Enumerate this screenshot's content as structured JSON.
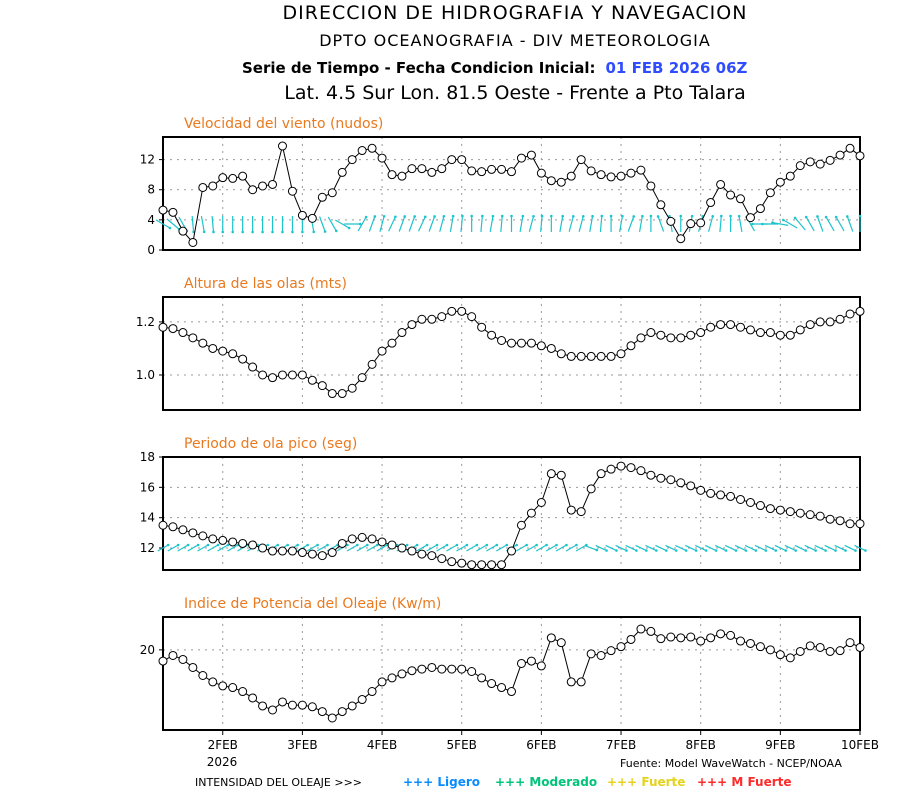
{
  "header": {
    "line1": "DIRECCION DE HIDROGRAFIA Y NAVEGACION",
    "line2": "DPTO OCEANOGRAFIA - DIV METEOROLOGIA",
    "line3_prefix": "Serie de Tiempo - Fecha Condicion Inicial:",
    "line3_date": "01 FEB 2026 06Z",
    "line4": "Lat. 4.5 Sur  Lon. 81.5 Oeste - Frente a Pto Talara"
  },
  "colors": {
    "date": "#2f4cff",
    "title": "#e87a20",
    "arrow": "#1cc4cc",
    "ligero": "#0a8cff",
    "moderado": "#00c47a",
    "fuerte": "#e6d21c",
    "mfuerte": "#ff2a2a"
  },
  "chart_data": [
    {
      "type": "line",
      "title": "Velocidad del viento (nudos)",
      "ylim": [
        0,
        15
      ],
      "yticks": [
        "0",
        "4",
        "8",
        "12"
      ],
      "ytick_values": [
        0,
        4,
        8,
        12
      ],
      "x_start": "01 FEB 2026 06Z",
      "x_step_hours": 3,
      "values": [
        5.3,
        5.0,
        2.5,
        1.0,
        8.3,
        8.5,
        9.6,
        9.5,
        9.8,
        8.0,
        8.5,
        8.7,
        13.8,
        7.8,
        4.6,
        4.2,
        7.0,
        7.6,
        10.3,
        12.0,
        13.2,
        13.5,
        12.2,
        10.0,
        9.8,
        10.8,
        10.8,
        10.3,
        10.8,
        12.0,
        12.0,
        10.5,
        10.4,
        10.7,
        10.7,
        10.4,
        12.2,
        12.6,
        10.2,
        9.2,
        9.0,
        9.8,
        12.0,
        10.5,
        10.0,
        9.7,
        9.8,
        10.2,
        10.6,
        8.5,
        6.0,
        3.8,
        1.5,
        3.5,
        3.6,
        6.3,
        8.7,
        7.3,
        6.8,
        4.3,
        5.5,
        7.6,
        9.0,
        9.8,
        11.2,
        11.7,
        11.4,
        11.9,
        12.6,
        13.5,
        12.5
      ],
      "arrow_dir_deg": [
        120,
        130,
        150,
        175,
        170,
        175,
        180,
        180,
        180,
        180,
        180,
        180,
        180,
        180,
        180,
        170,
        160,
        150,
        120,
        90,
        30,
        20,
        15,
        25,
        20,
        20,
        25,
        20,
        15,
        10,
        5,
        0,
        5,
        10,
        5,
        0,
        10,
        15,
        5,
        0,
        10,
        15,
        15,
        10,
        5,
        0,
        10,
        20,
        10,
        0,
        340,
        350,
        0,
        10,
        15,
        15,
        5,
        0,
        350,
        330,
        270,
        270,
        280,
        300,
        320,
        330,
        340,
        330,
        330,
        340,
        0
      ]
    },
    {
      "type": "line",
      "title": "Altura de las olas (mts)",
      "ylim": [
        0.868,
        1.294
      ],
      "yticks": [
        "1.0",
        "1.2"
      ],
      "ytick_values": [
        1.0,
        1.2
      ],
      "values": [
        1.18,
        1.175,
        1.16,
        1.14,
        1.12,
        1.1,
        1.09,
        1.08,
        1.06,
        1.03,
        1.0,
        0.99,
        1.0,
        1.0,
        1.0,
        0.98,
        0.96,
        0.93,
        0.93,
        0.95,
        0.99,
        1.04,
        1.09,
        1.12,
        1.16,
        1.19,
        1.21,
        1.21,
        1.22,
        1.24,
        1.24,
        1.22,
        1.18,
        1.15,
        1.13,
        1.12,
        1.12,
        1.12,
        1.11,
        1.1,
        1.08,
        1.07,
        1.07,
        1.07,
        1.07,
        1.07,
        1.08,
        1.11,
        1.14,
        1.16,
        1.15,
        1.14,
        1.14,
        1.15,
        1.16,
        1.18,
        1.19,
        1.19,
        1.18,
        1.17,
        1.16,
        1.16,
        1.15,
        1.15,
        1.17,
        1.19,
        1.2,
        1.2,
        1.21,
        1.23,
        1.24
      ]
    },
    {
      "type": "line",
      "title": "Periodo de ola pico (seg)",
      "ylim": [
        10.55,
        18
      ],
      "yticks": [
        "12",
        "14",
        "16",
        "18"
      ],
      "ytick_values": [
        12,
        14,
        16,
        18
      ],
      "values": [
        13.5,
        13.4,
        13.2,
        13.0,
        12.8,
        12.6,
        12.5,
        12.4,
        12.3,
        12.2,
        12.0,
        11.8,
        11.8,
        11.8,
        11.7,
        11.6,
        11.5,
        11.7,
        12.3,
        12.6,
        12.7,
        12.6,
        12.4,
        12.2,
        12.0,
        11.8,
        11.6,
        11.5,
        11.3,
        11.1,
        11.0,
        10.9,
        10.9,
        10.9,
        10.9,
        11.8,
        13.5,
        14.3,
        15.0,
        16.9,
        16.8,
        14.5,
        14.4,
        15.9,
        16.9,
        17.2,
        17.4,
        17.3,
        17.1,
        16.8,
        16.6,
        16.5,
        16.3,
        16.1,
        15.8,
        15.6,
        15.5,
        15.4,
        15.2,
        15.0,
        14.8,
        14.6,
        14.5,
        14.4,
        14.3,
        14.2,
        14.1,
        13.9,
        13.8,
        13.6,
        13.6
      ],
      "arrow_dir_deg": [
        60,
        60,
        60,
        60,
        60,
        60,
        60,
        60,
        60,
        60,
        60,
        60,
        60,
        60,
        60,
        60,
        60,
        60,
        60,
        60,
        60,
        60,
        60,
        60,
        60,
        60,
        60,
        60,
        60,
        60,
        60,
        60,
        60,
        60,
        60,
        60,
        60,
        60,
        60,
        60,
        60,
        60,
        60,
        110,
        115,
        115,
        115,
        115,
        115,
        115,
        115,
        115,
        115,
        115,
        115,
        115,
        115,
        115,
        115,
        115,
        115,
        115,
        115,
        115,
        115,
        115,
        115,
        115,
        115,
        115,
        115
      ]
    },
    {
      "type": "line",
      "title": "Indice de Potencia del Oleaje (Kw/m)",
      "ylim": [
        10,
        24.1
      ],
      "yticks": [
        "20"
      ],
      "ytick_values": [
        20
      ],
      "values": [
        18.6,
        19.3,
        18.8,
        17.8,
        16.8,
        16.0,
        15.5,
        15.3,
        14.8,
        14.0,
        13.0,
        12.5,
        13.5,
        13.1,
        13.1,
        12.9,
        12.3,
        11.5,
        12.3,
        13.0,
        13.8,
        14.8,
        16.0,
        16.5,
        17.0,
        17.4,
        17.6,
        17.8,
        17.6,
        17.6,
        17.6,
        17.3,
        16.5,
        15.8,
        15.3,
        14.8,
        18.3,
        18.6,
        18.0,
        21.5,
        20.9,
        16.0,
        16.0,
        19.5,
        19.3,
        19.9,
        20.4,
        21.3,
        22.6,
        22.3,
        21.4,
        21.6,
        21.5,
        21.6,
        21.1,
        21.5,
        22.0,
        21.8,
        21.1,
        20.8,
        20.4,
        20.0,
        19.4,
        19.0,
        19.8,
        20.5,
        20.3,
        19.8,
        19.9,
        20.9,
        20.3
      ]
    }
  ],
  "xaxis": {
    "ticks": [
      "2FEB",
      "3FEB",
      "4FEB",
      "5FEB",
      "6FEB",
      "7FEB",
      "8FEB",
      "9FEB",
      "10FEB"
    ],
    "tick_hours": [
      18,
      42,
      66,
      90,
      114,
      138,
      162,
      186,
      210
    ],
    "year": "2026",
    "end_hours": 210
  },
  "footer": {
    "source": "Fuente: Model WaveWatch - NCEP/NOAA",
    "legend_label": "INTENSIDAD DEL OLEAJE >>>",
    "legend": [
      {
        "text": "+++ Ligero"
      },
      {
        "text": "+++ Moderado"
      },
      {
        "text": "+++ Fuerte"
      },
      {
        "text": "+++ M Fuerte"
      }
    ]
  }
}
